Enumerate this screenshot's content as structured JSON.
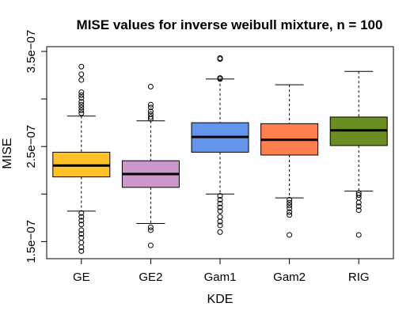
{
  "chart_data": {
    "type": "boxplot",
    "title": "MISE values for inverse weibull mixture, n = 100",
    "xlabel": "KDE",
    "ylabel": "MISE",
    "categories": [
      "GE",
      "GE2",
      "Gam1",
      "Gam2",
      "RIG"
    ],
    "y_ticks": [
      1.5e-07,
      2.5e-07,
      3.5e-07
    ],
    "y_tick_labels": [
      "1.5e−07",
      "2.5e−07",
      "3.5e−07"
    ],
    "ylim": [
      1.32e-07,
      3.55e-07
    ],
    "colors": [
      "#FFC125",
      "#CD96CD",
      "#6495ED",
      "#FF7F50",
      "#6B8E23"
    ],
    "series": [
      {
        "name": "GE",
        "whisker_low": 1.82e-07,
        "q1": 2.18e-07,
        "median": 2.3e-07,
        "q3": 2.44e-07,
        "whisker_high": 2.82e-07,
        "outliers": [
          3.34e-07,
          3.26e-07,
          3.2e-07,
          3.07e-07,
          3.04e-07,
          3.01e-07,
          2.97e-07,
          2.94e-07,
          2.91e-07,
          2.88e-07,
          2.85e-07,
          1.8e-07,
          1.76e-07,
          1.72e-07,
          1.68e-07,
          1.62e-07,
          1.58e-07,
          1.54e-07,
          1.49e-07,
          1.44e-07,
          1.4e-07
        ]
      },
      {
        "name": "GE2",
        "whisker_low": 1.69e-07,
        "q1": 2.07e-07,
        "median": 2.21e-07,
        "q3": 2.35e-07,
        "whisker_high": 2.77e-07,
        "outliers": [
          3.13e-07,
          2.94e-07,
          2.91e-07,
          2.87e-07,
          2.84e-07,
          2.81e-07,
          2.79e-07,
          1.65e-07,
          1.62e-07,
          1.46e-07
        ]
      },
      {
        "name": "Gam1",
        "whisker_low": 2e-07,
        "q1": 2.44e-07,
        "median": 2.6e-07,
        "q3": 2.75e-07,
        "whisker_high": 3.21e-07,
        "outliers": [
          3.43e-07,
          3.42e-07,
          3.22e-07,
          3.21e-07,
          1.98e-07,
          1.94e-07,
          1.9e-07,
          1.86e-07,
          1.82e-07,
          1.76e-07,
          1.71e-07,
          1.67e-07,
          1.6e-07
        ]
      },
      {
        "name": "Gam2",
        "whisker_low": 1.96e-07,
        "q1": 2.41e-07,
        "median": 2.57e-07,
        "q3": 2.74e-07,
        "whisker_high": 3.15e-07,
        "outliers": [
          1.94e-07,
          1.91e-07,
          1.88e-07,
          1.85e-07,
          1.81e-07,
          1.78e-07,
          1.57e-07
        ]
      },
      {
        "name": "RIG",
        "whisker_low": 2.03e-07,
        "q1": 2.51e-07,
        "median": 2.67e-07,
        "q3": 2.81e-07,
        "whisker_high": 3.29e-07,
        "outliers": [
          2.01e-07,
          1.99e-07,
          1.96e-07,
          1.91e-07,
          1.87e-07,
          1.83e-07,
          1.57e-07
        ]
      }
    ]
  }
}
